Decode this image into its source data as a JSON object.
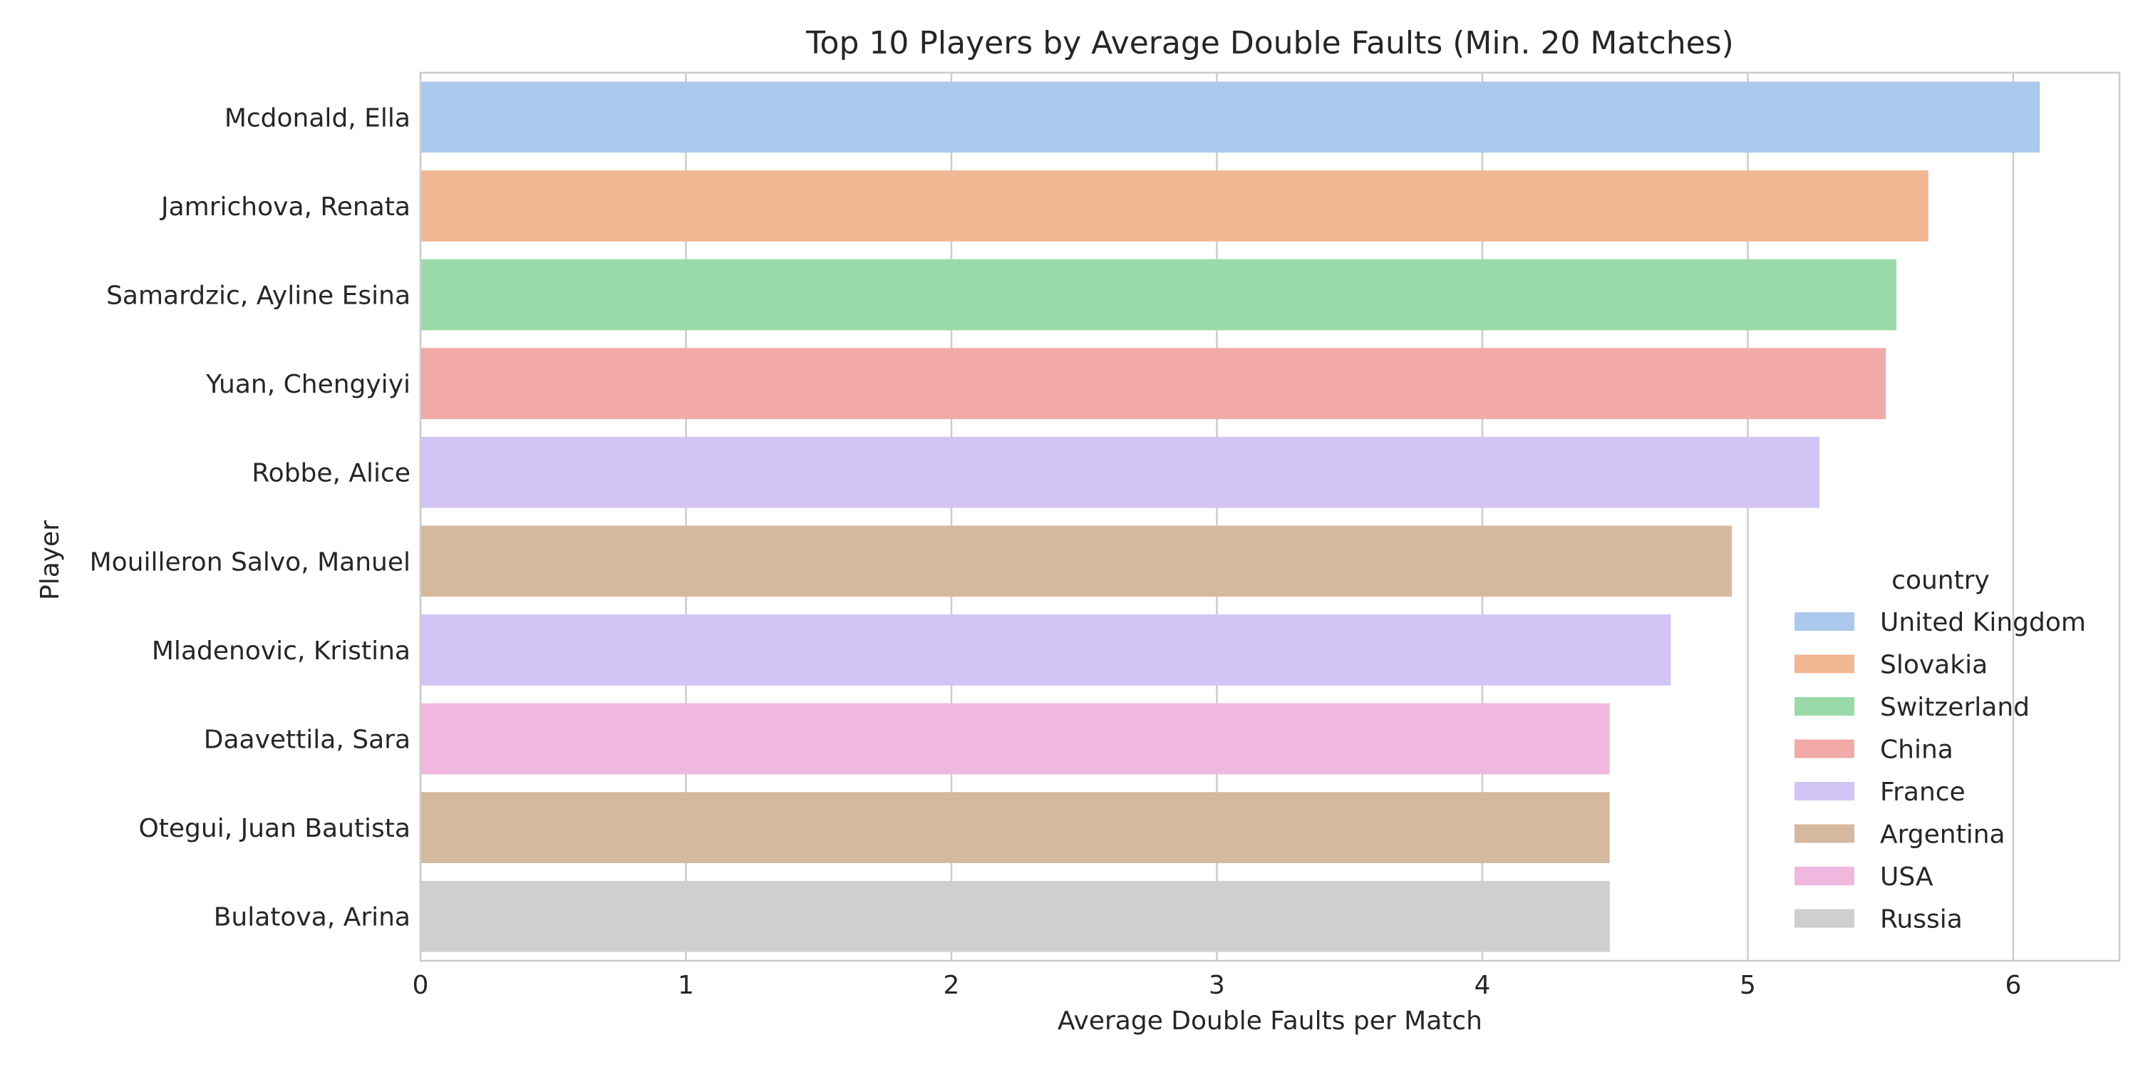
{
  "chart_data": {
    "type": "bar",
    "orientation": "horizontal",
    "title": "Top 10 Players by Average Double Faults (Min. 20 Matches)",
    "xlabel": "Average Double Faults per Match",
    "ylabel": "Player",
    "xlim": [
      0,
      6.4
    ],
    "xticks": [
      0,
      1,
      2,
      3,
      4,
      5,
      6
    ],
    "grid": true,
    "legend": {
      "title": "country",
      "placement": "lower-right",
      "entries": [
        {
          "label": "United Kingdom",
          "color": "#abc9ec"
        },
        {
          "label": "Slovakia",
          "color": "#f1b692"
        },
        {
          "label": "Switzerland",
          "color": "#9adaa8"
        },
        {
          "label": "China",
          "color": "#f1aaa7"
        },
        {
          "label": "France",
          "color": "#d2c4f4"
        },
        {
          "label": "Argentina",
          "color": "#d5b99f"
        },
        {
          "label": "USA",
          "color": "#f0b8df"
        },
        {
          "label": "Russia",
          "color": "#cfcfcf"
        }
      ]
    },
    "bars": [
      {
        "player": "Mcdonald, Ella",
        "value": 6.1,
        "country": "United Kingdom"
      },
      {
        "player": "Jamrichova, Renata",
        "value": 5.68,
        "country": "Slovakia"
      },
      {
        "player": "Samardzic, Ayline Esina",
        "value": 5.56,
        "country": "Switzerland"
      },
      {
        "player": "Yuan, Chengyiyi",
        "value": 5.52,
        "country": "China"
      },
      {
        "player": "Robbe, Alice",
        "value": 5.27,
        "country": "France"
      },
      {
        "player": "Mouilleron Salvo, Manuel",
        "value": 4.94,
        "country": "Argentina"
      },
      {
        "player": "Mladenovic, Kristina",
        "value": 4.71,
        "country": "France"
      },
      {
        "player": "Daavettila, Sara",
        "value": 4.48,
        "country": "USA"
      },
      {
        "player": "Otegui, Juan Bautista",
        "value": 4.48,
        "country": "Argentina"
      },
      {
        "player": "Bulatova, Arina",
        "value": 4.48,
        "country": "Russia"
      }
    ]
  }
}
